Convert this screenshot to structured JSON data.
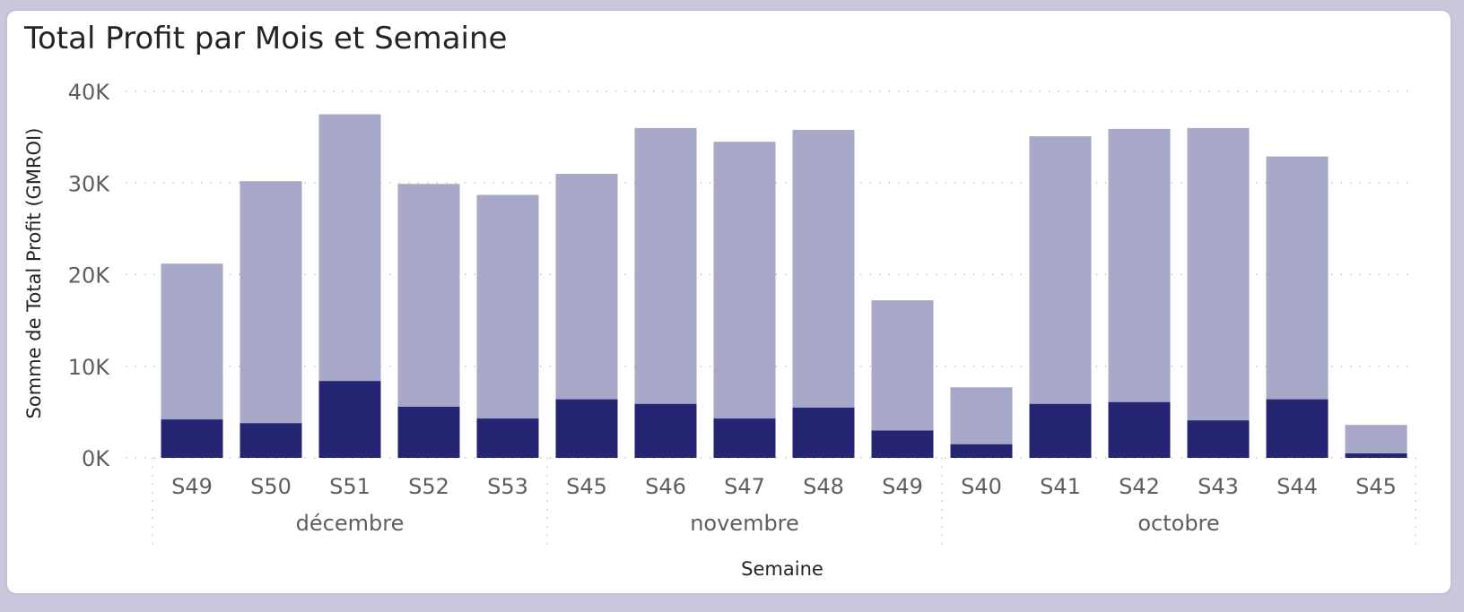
{
  "chart_data": {
    "type": "bar",
    "stacked": true,
    "title": "Total Profit par Mois et Semaine",
    "xlabel": "Semaine",
    "ylabel": "Somme de Total Profit (GMROI)",
    "ylim": [
      0,
      40000
    ],
    "yticks": [
      {
        "value": 0,
        "label": "0K"
      },
      {
        "value": 10000,
        "label": "10K"
      },
      {
        "value": 20000,
        "label": "20K"
      },
      {
        "value": 30000,
        "label": "30K"
      },
      {
        "value": 40000,
        "label": "40K"
      }
    ],
    "grid": true,
    "legend": "none",
    "categories": [
      "S49",
      "S50",
      "S51",
      "S52",
      "S53",
      "S45",
      "S46",
      "S47",
      "S48",
      "S49",
      "S40",
      "S41",
      "S42",
      "S43",
      "S44",
      "S45"
    ],
    "groups": [
      {
        "label": "décembre",
        "count": 5
      },
      {
        "label": "novembre",
        "count": 5
      },
      {
        "label": "octobre",
        "count": 6
      }
    ],
    "series": [
      {
        "color": "#252574",
        "values": [
          4200,
          3800,
          8400,
          5600,
          4300,
          6400,
          5900,
          4300,
          5500,
          3000,
          1500,
          5900,
          6100,
          4100,
          6400,
          500
        ]
      },
      {
        "color": "#a7a7c8",
        "values": [
          17000,
          26400,
          29100,
          24300,
          24400,
          24600,
          30100,
          30200,
          30300,
          14200,
          6200,
          29200,
          29800,
          31900,
          26500,
          3100
        ]
      }
    ]
  }
}
